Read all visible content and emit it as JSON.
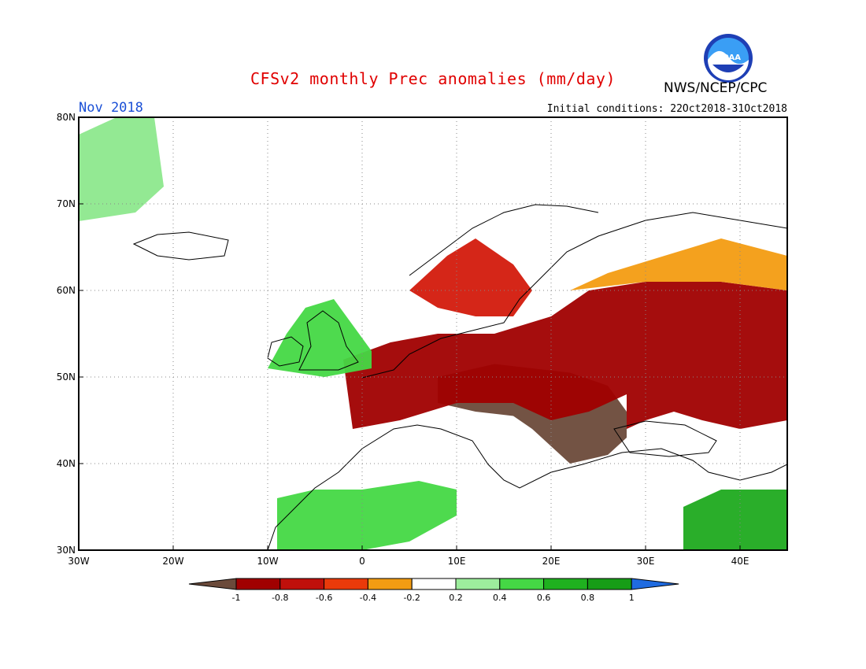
{
  "header": {
    "title": "CFSv2 monthly Prec anomalies (mm/day)",
    "agency": "NWS/NCEP/CPC",
    "logo_text": "NOAA",
    "month": "Nov 2018",
    "initial_conditions": "Initial conditions: 22Oct2018-31Oct2018"
  },
  "map": {
    "lon_range": [
      -30,
      45
    ],
    "lat_range": [
      30,
      80
    ],
    "lon_ticks": [
      {
        "value": -30,
        "label": "30W"
      },
      {
        "value": -20,
        "label": "20W"
      },
      {
        "value": -10,
        "label": "10W"
      },
      {
        "value": 0,
        "label": "0"
      },
      {
        "value": 10,
        "label": "10E"
      },
      {
        "value": 20,
        "label": "20E"
      },
      {
        "value": 30,
        "label": "30E"
      },
      {
        "value": 40,
        "label": "40E"
      }
    ],
    "lat_ticks": [
      {
        "value": 30,
        "label": "30N"
      },
      {
        "value": 40,
        "label": "40N"
      },
      {
        "value": 50,
        "label": "50N"
      },
      {
        "value": 60,
        "label": "60N"
      },
      {
        "value": 70,
        "label": "70N"
      },
      {
        "value": 80,
        "label": "80N"
      }
    ],
    "gridlines": "dotted",
    "anomaly_regions": [
      {
        "region": "Central and Eastern Europe",
        "class": "below -1",
        "color": "#6b4a3a",
        "polygon": [
          [
            8,
            50
          ],
          [
            14,
            51.5
          ],
          [
            22,
            50.5
          ],
          [
            26,
            49
          ],
          [
            28,
            46
          ],
          [
            28,
            43
          ],
          [
            26,
            41
          ],
          [
            22,
            40
          ],
          [
            20,
            42
          ],
          [
            18,
            44
          ],
          [
            16,
            45.5
          ],
          [
            12,
            46
          ],
          [
            8,
            47
          ]
        ]
      },
      {
        "region": "Eastern Europe / Western Russia",
        "class": "-1 to -0.8",
        "color": "#a00000",
        "polygon": [
          [
            -2,
            52
          ],
          [
            3,
            54
          ],
          [
            8,
            55
          ],
          [
            14,
            55
          ],
          [
            20,
            57
          ],
          [
            24,
            60
          ],
          [
            30,
            61
          ],
          [
            38,
            61
          ],
          [
            45,
            60
          ],
          [
            45,
            45
          ],
          [
            40,
            44
          ],
          [
            36,
            45
          ],
          [
            33,
            46
          ],
          [
            30,
            45
          ],
          [
            28,
            44
          ],
          [
            28,
            48
          ],
          [
            24,
            46
          ],
          [
            20,
            45
          ],
          [
            16,
            47
          ],
          [
            10,
            47
          ],
          [
            4,
            45
          ],
          [
            -1,
            44
          ]
        ]
      },
      {
        "region": "Scandinavia",
        "class": "-0.8 to -0.6",
        "color": "#d31a0c",
        "polygon": [
          [
            5,
            60
          ],
          [
            9,
            64
          ],
          [
            12,
            66
          ],
          [
            16,
            63
          ],
          [
            18,
            60
          ],
          [
            16,
            57
          ],
          [
            12,
            57
          ],
          [
            8,
            58
          ]
        ]
      },
      {
        "region": "Northern Russia",
        "class": "-0.4 to -0.2",
        "color": "#f39c12",
        "polygon": [
          [
            22,
            60
          ],
          [
            26,
            62
          ],
          [
            32,
            64
          ],
          [
            38,
            66
          ],
          [
            45,
            64
          ],
          [
            45,
            60
          ],
          [
            38,
            61
          ],
          [
            30,
            61
          ]
        ]
      },
      {
        "region": "Iberia / Maghreb",
        "class": "0.2 to 0.4",
        "color": "#45d845",
        "polygon": [
          [
            -9,
            30
          ],
          [
            -9,
            36
          ],
          [
            -5,
            37
          ],
          [
            0,
            37
          ],
          [
            6,
            38
          ],
          [
            10,
            37
          ],
          [
            10,
            34
          ],
          [
            5,
            31
          ],
          [
            0,
            30
          ]
        ]
      },
      {
        "region": "Middle East",
        "class": "0.4 to 0.6",
        "color": "#1faa1f",
        "polygon": [
          [
            34,
            30
          ],
          [
            34,
            35
          ],
          [
            38,
            37
          ],
          [
            45,
            37
          ],
          [
            45,
            30
          ]
        ]
      },
      {
        "region": "Greenland",
        "class": "0.2 to 0.4",
        "color": "#8de88d",
        "polygon": [
          [
            -30,
            68
          ],
          [
            -30,
            78
          ],
          [
            -26,
            80
          ],
          [
            -22,
            80
          ],
          [
            -21,
            72
          ],
          [
            -24,
            69
          ]
        ]
      },
      {
        "region": "British Isles",
        "class": "0.4 to 0.6",
        "color": "#45d845",
        "polygon": [
          [
            -10,
            51
          ],
          [
            -8,
            55
          ],
          [
            -6,
            58
          ],
          [
            -3,
            59
          ],
          [
            -1,
            56
          ],
          [
            1,
            53
          ],
          [
            1,
            51
          ],
          [
            -4,
            50
          ]
        ]
      }
    ]
  },
  "colorbar": {
    "labels": [
      "-1",
      "-0.8",
      "-0.6",
      "-0.4",
      "-0.2",
      "0.2",
      "0.4",
      "0.6",
      "0.8",
      "1"
    ],
    "colors": [
      "#6b4a3a",
      "#a00000",
      "#c0100b",
      "#ea3a0a",
      "#f39c12",
      "#ffffff",
      "#9ded9d",
      "#45d845",
      "#1fb11f",
      "#179d17",
      "#1f6be0"
    ]
  }
}
